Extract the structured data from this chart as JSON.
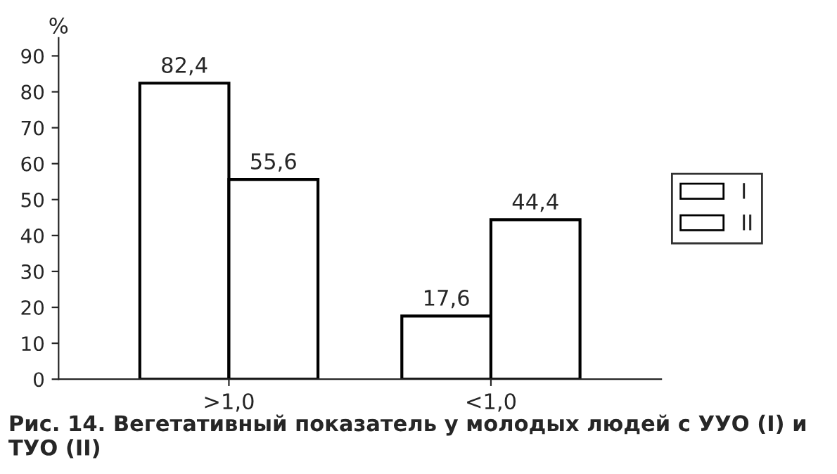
{
  "chart_data": {
    "type": "bar",
    "ylabel": "%",
    "categories": [
      ">1,0",
      "<1,0"
    ],
    "series": [
      {
        "name": "I",
        "color": "#ffffff",
        "values": [
          82.4,
          17.6
        ],
        "value_labels": [
          "82,4",
          "17,6"
        ]
      },
      {
        "name": "II",
        "color": "#ffffff",
        "values": [
          55.6,
          44.4
        ],
        "value_labels": [
          "55,6",
          "44,4"
        ]
      }
    ],
    "ylim": [
      0,
      95
    ],
    "yticks": [
      0,
      10,
      20,
      30,
      40,
      50,
      60,
      70,
      80,
      90
    ],
    "grid": false,
    "legend": "right",
    "annotations": [
      "Рис. 14. Вегетативный показатель у молодых людей с УУО (I) и ТУО (II)"
    ]
  }
}
